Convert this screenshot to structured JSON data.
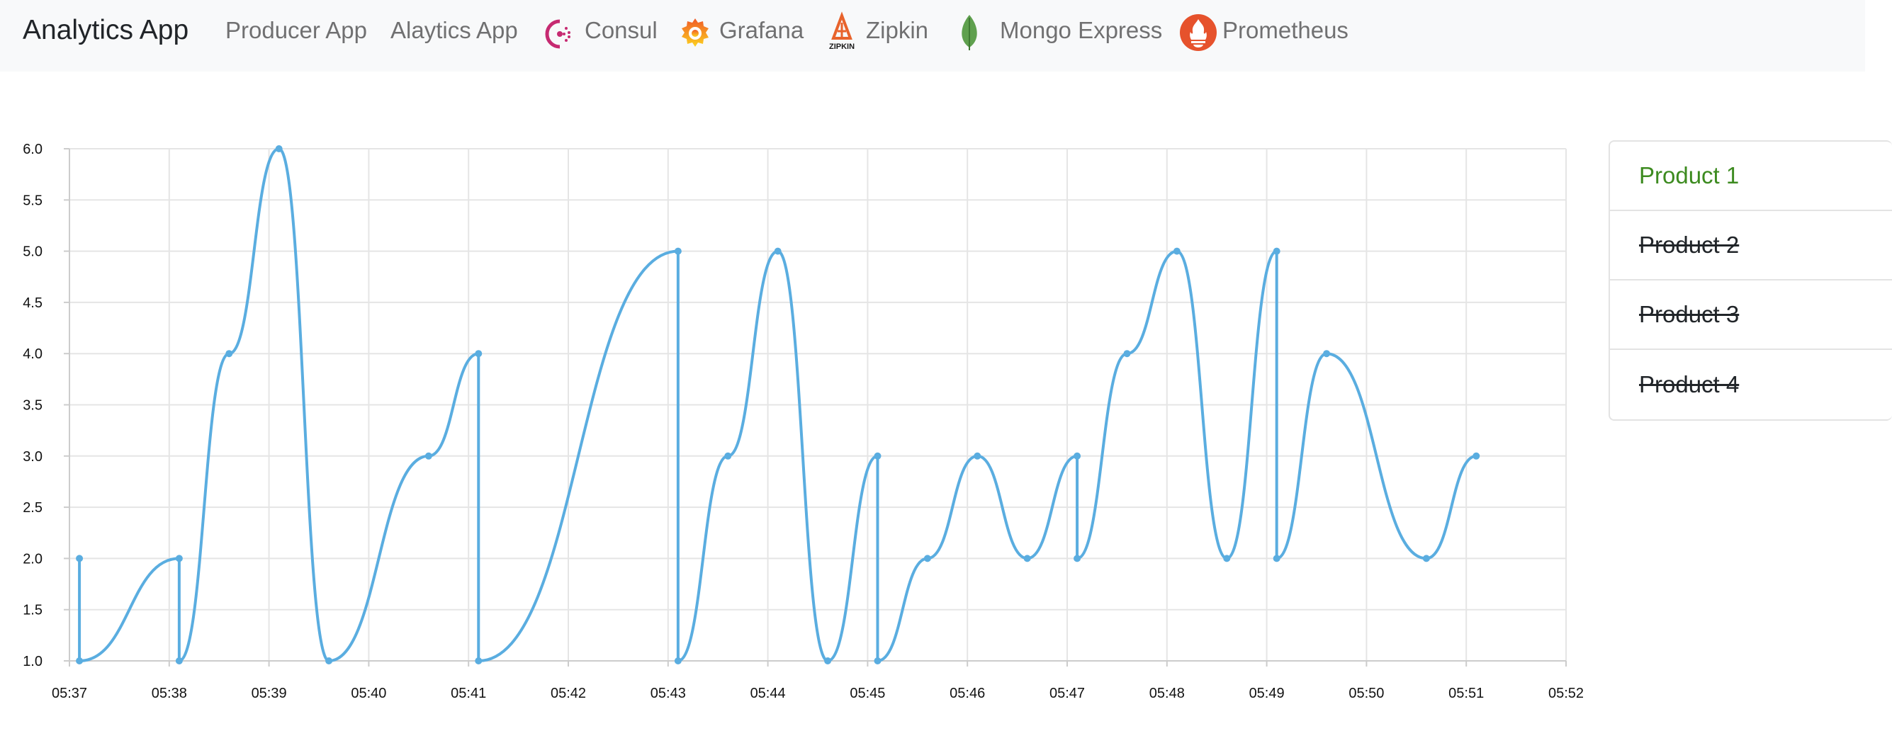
{
  "nav": {
    "brand": "Analytics App",
    "links": [
      {
        "label": "Producer App",
        "icon": ""
      },
      {
        "label": "Alaytics App",
        "icon": ""
      },
      {
        "label": "Consul",
        "icon": "consul-icon"
      },
      {
        "label": "Grafana",
        "icon": "grafana-icon"
      },
      {
        "label": "Zipkin",
        "icon": "zipkin-icon"
      },
      {
        "label": "Mongo Express",
        "icon": "mongodb-leaf-icon"
      },
      {
        "label": "Prometheus",
        "icon": "prometheus-icon"
      }
    ],
    "zipkin_icon_text": "ZIPKIN"
  },
  "products": [
    {
      "label": "Product 1",
      "active": true
    },
    {
      "label": "Product 2",
      "active": false
    },
    {
      "label": "Product 3",
      "active": false
    },
    {
      "label": "Product 4",
      "active": false
    }
  ],
  "colors": {
    "line": "#5aade0",
    "active_product": "#3d8b20",
    "consul": "#c62a71",
    "grafana": "#f47b26",
    "zipkin": "#e8632c",
    "mongo": "#5fa04e",
    "prometheus": "#e6522c"
  },
  "chart_data": {
    "type": "line",
    "ylim": [
      1.0,
      6.0
    ],
    "yticks": [
      "1.0",
      "1.5",
      "2.0",
      "2.5",
      "3.0",
      "3.5",
      "4.0",
      "4.5",
      "5.0",
      "5.5",
      "6.0"
    ],
    "xticks": [
      "05:37",
      "05:38",
      "05:39",
      "05:40",
      "05:41",
      "05:42",
      "05:43",
      "05:44",
      "05:45",
      "05:46",
      "05:47",
      "05:48",
      "05:49",
      "05:50",
      "05:51",
      "05:52"
    ],
    "xlim_minutes": [
      0,
      15
    ],
    "grid": true,
    "series": [
      {
        "minutes": [
          0.1,
          0.1,
          1.1,
          1.1,
          1.6,
          2.1,
          2.6,
          3.6,
          4.1,
          4.1,
          6.1,
          6.1,
          6.6,
          7.1,
          7.6,
          8.1,
          8.1,
          8.6,
          9.1,
          9.6,
          10.1,
          10.1,
          10.6,
          11.1,
          11.6,
          12.1,
          12.1,
          12.6,
          13.6,
          14.1
        ],
        "values": [
          2,
          1,
          2,
          1,
          4,
          6,
          1,
          3,
          4,
          1,
          5,
          1,
          3,
          5,
          1,
          3,
          1,
          2,
          3,
          2,
          3,
          2,
          4,
          5,
          2,
          5,
          2,
          4,
          2,
          3
        ]
      }
    ]
  }
}
